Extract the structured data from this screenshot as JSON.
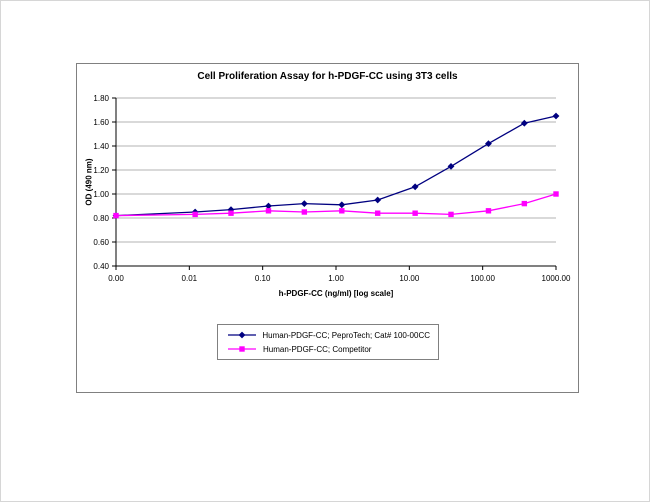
{
  "chart_data": {
    "type": "line",
    "title": "Cell Proliferation Assay for h-PDGF-CC using 3T3 cells",
    "xlabel": "h-PDGF-CC (ng/ml) [log scale]",
    "ylabel": "OD (490 nm)",
    "ylim": [
      0.4,
      1.8
    ],
    "y_tick_step": 0.2,
    "y_ticks": [
      "0.40",
      "0.60",
      "0.80",
      "1.00",
      "1.20",
      "1.40",
      "1.60",
      "1.80"
    ],
    "x_ticks": [
      "0.00",
      "0.01",
      "0.10",
      "1.00",
      "10.00",
      "100.00",
      "1000.00"
    ],
    "x_scale": "log",
    "x_log_min_exp": -2,
    "x_log_max_exp": 3,
    "grid": "horizontal",
    "legend_position": "bottom",
    "series": [
      {
        "name": "Human-PDGF-CC; PeproTech; Cat# 100-00CC",
        "color": "#000080",
        "marker": "diamond",
        "x": [
          0,
          0.012,
          0.037,
          0.12,
          0.37,
          1.2,
          3.7,
          12,
          37,
          120,
          370,
          1000
        ],
        "y": [
          0.82,
          0.85,
          0.87,
          0.9,
          0.92,
          0.91,
          0.95,
          1.06,
          1.23,
          1.42,
          1.59,
          1.65
        ]
      },
      {
        "name": "Human-PDGF-CC; Competitor",
        "color": "#ff00ff",
        "marker": "square",
        "x": [
          0,
          0.012,
          0.037,
          0.12,
          0.37,
          1.2,
          3.7,
          12,
          37,
          120,
          370,
          1000
        ],
        "y": [
          0.82,
          0.83,
          0.84,
          0.86,
          0.85,
          0.86,
          0.84,
          0.84,
          0.83,
          0.86,
          0.92,
          1.0
        ]
      }
    ]
  }
}
